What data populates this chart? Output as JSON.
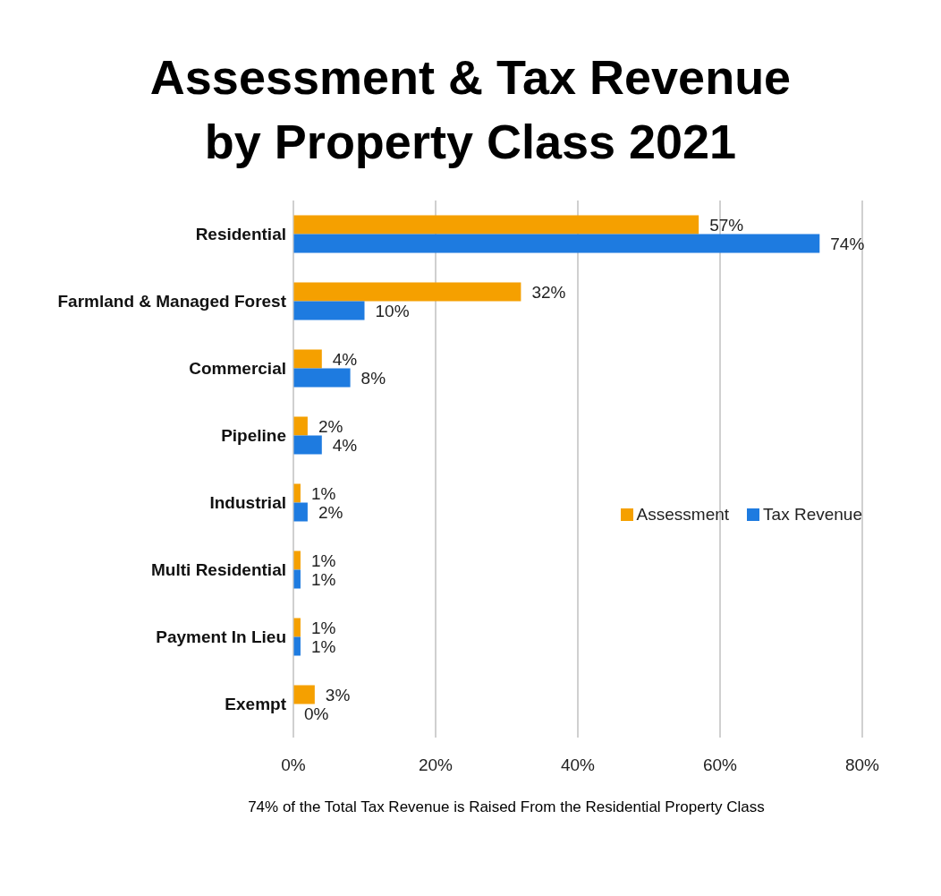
{
  "chart_data": {
    "type": "bar",
    "orientation": "horizontal",
    "title": "Assessment & Tax Revenue by Property Class 2021",
    "categories": [
      "Residential",
      "Farmland & Managed Forest",
      "Commercial",
      "Pipeline",
      "Industrial",
      "Multi Residential",
      "Payment In Lieu",
      "Exempt"
    ],
    "series": [
      {
        "name": "Assessment",
        "color": "#f5a000",
        "values": [
          57,
          32,
          4,
          2,
          1,
          1,
          1,
          3
        ],
        "value_labels": [
          "57%",
          "32%",
          "4%",
          "2%",
          "1%",
          "1%",
          "1%",
          "3%"
        ]
      },
      {
        "name": "Tax Revenue",
        "color": "#1e7be0",
        "values": [
          74,
          10,
          8,
          4,
          2,
          1,
          1,
          0
        ],
        "value_labels": [
          "74%",
          "10%",
          "8%",
          "4%",
          "2%",
          "1%",
          "1%",
          "0%"
        ]
      }
    ],
    "xlim": [
      0,
      80
    ],
    "xticks": [
      {
        "value": 0,
        "label": "0%"
      },
      {
        "value": 20,
        "label": "20%"
      },
      {
        "value": 40,
        "label": "40%"
      },
      {
        "value": 60,
        "label": "60%"
      },
      {
        "value": 80,
        "label": "80%"
      }
    ],
    "grid": "x",
    "legend": "right",
    "annotations": [
      "74% of the Total Tax Revenue is Raised From the Residential Property Class"
    ]
  }
}
